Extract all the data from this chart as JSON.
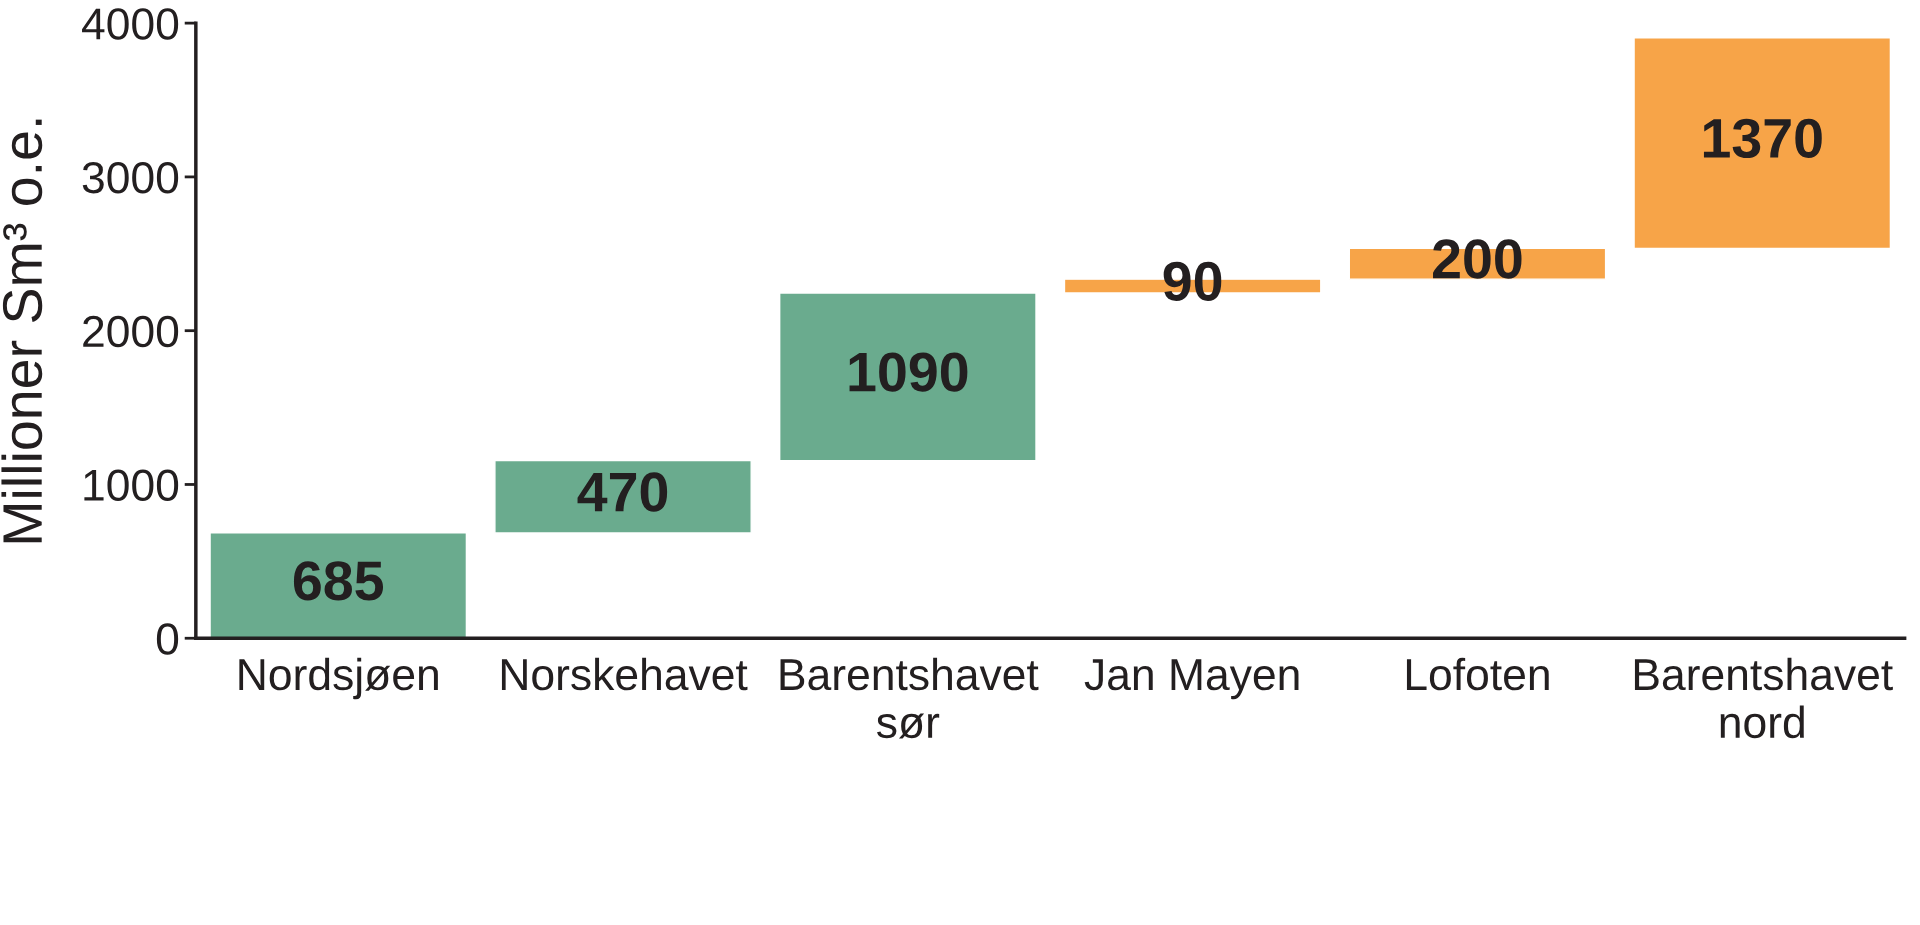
{
  "chart_data": {
    "type": "bar",
    "ylabel": "Millioner Sm³ o.e.",
    "categories": [
      "Nordsjøen",
      "Norskehavet",
      "Barentshavet\nsør",
      "Jan Mayen",
      "Lofoten",
      "Barentshavet\nnord"
    ],
    "values": [
      685,
      470,
      1090,
      90,
      200,
      1370
    ],
    "base": [
      0,
      685,
      1155,
      2245,
      2335,
      2535
    ],
    "colors": [
      "#6aab8e",
      "#6aab8e",
      "#6aab8e",
      "#f7a448",
      "#f7a448",
      "#f7a448"
    ],
    "ylim": [
      0,
      4000
    ],
    "yticks": [
      0,
      1000,
      2000,
      3000,
      4000
    ],
    "data_labels": true,
    "grid": false,
    "legend": false
  }
}
